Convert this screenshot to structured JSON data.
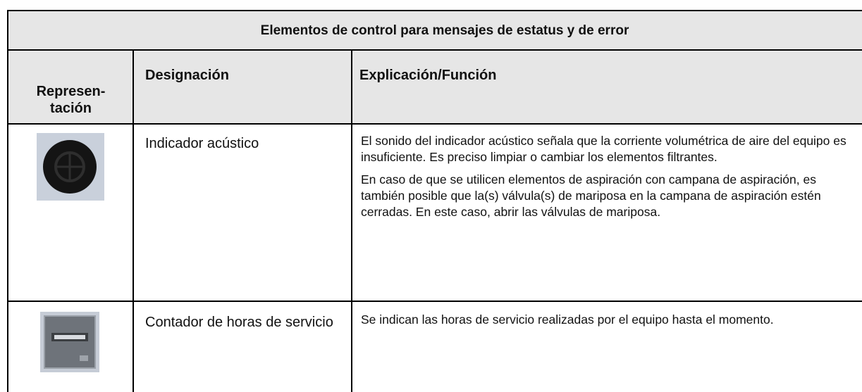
{
  "header": {
    "title": "Elementos de control para mensajes de estatus y de error"
  },
  "table": {
    "columns": [
      "Represen-\ntación",
      "Designación",
      "Explicación/Función"
    ],
    "rows": [
      [
        "Indicador acústico",
        [
          "El sonido del indicador acústico señala que la corriente volumétrica de aire del equipo es insuficiente. Es preciso limpiar o cambiar los elementos filtrantes.",
          "En caso de que se utilicen elementos de aspiración con campana de aspiración, es también posible que la(s) válvula(s) de mariposa en la campana de aspiración estén cerradas. En este caso, abrir las válvulas de mariposa."
        ]
      ],
      [
        "Contador de horas de servicio",
        [
          "Se indican las horas de servicio realizadas por el equipo hasta el momento."
        ]
      ]
    ]
  }
}
